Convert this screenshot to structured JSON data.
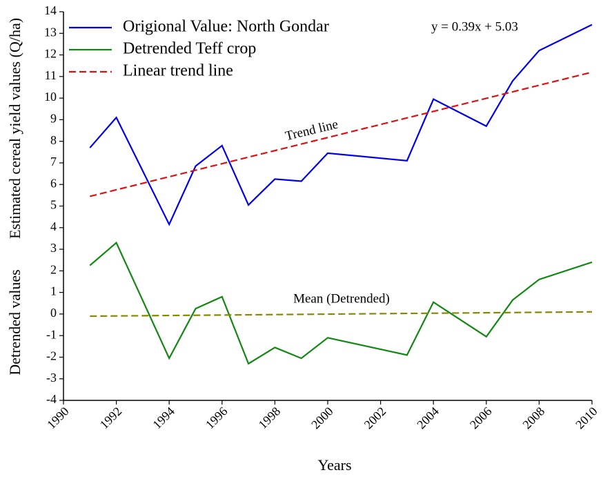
{
  "chart_data": {
    "type": "line",
    "x": [
      1991,
      1992,
      1994,
      1995,
      1996,
      1997,
      1998,
      1999,
      2000,
      2003,
      2004,
      2006,
      2007,
      2008,
      2010
    ],
    "series": [
      {
        "name": "Origional Value: North Gondar",
        "color": "#0000ee",
        "dash": false,
        "values": [
          7.7,
          9.1,
          4.15,
          6.85,
          7.8,
          5.05,
          6.25,
          6.15,
          7.45,
          7.1,
          9.95,
          8.7,
          10.8,
          12.2,
          13.4
        ]
      },
      {
        "name": "Detrended Teff crop",
        "color": "#118811",
        "dash": false,
        "values": [
          2.25,
          3.3,
          -2.05,
          0.25,
          0.8,
          -2.3,
          -1.55,
          -2.05,
          -1.1,
          -1.9,
          0.55,
          -1.05,
          0.65,
          1.6,
          2.4
        ]
      },
      {
        "name": "Linear trend line",
        "color": "#dd1111",
        "dash": true,
        "x": [
          1991,
          2010
        ],
        "values": [
          5.45,
          11.2
        ]
      },
      {
        "color": "#888800",
        "dash": true,
        "x": [
          1991,
          2010
        ],
        "values": [
          -0.1,
          0.1
        ]
      }
    ],
    "annotations": [
      "y = 0.39x + 5.03",
      "Trend line",
      "Mean (Detrended)"
    ],
    "ylabels": [
      "Estimated cereal yield values (Q/ha)",
      "Detrended values"
    ],
    "xlabel": "Years",
    "xlim": [
      1990,
      2010
    ],
    "xticks": [
      1990,
      1992,
      1994,
      1996,
      1998,
      2000,
      2002,
      2004,
      2006,
      2008,
      2010
    ],
    "ylim": [
      -4,
      14
    ],
    "yticks": [
      -4,
      -3,
      -2,
      -1,
      0,
      1,
      2,
      3,
      4,
      5,
      6,
      7,
      8,
      9,
      10,
      11,
      12,
      13,
      14
    ],
    "grid": false
  }
}
